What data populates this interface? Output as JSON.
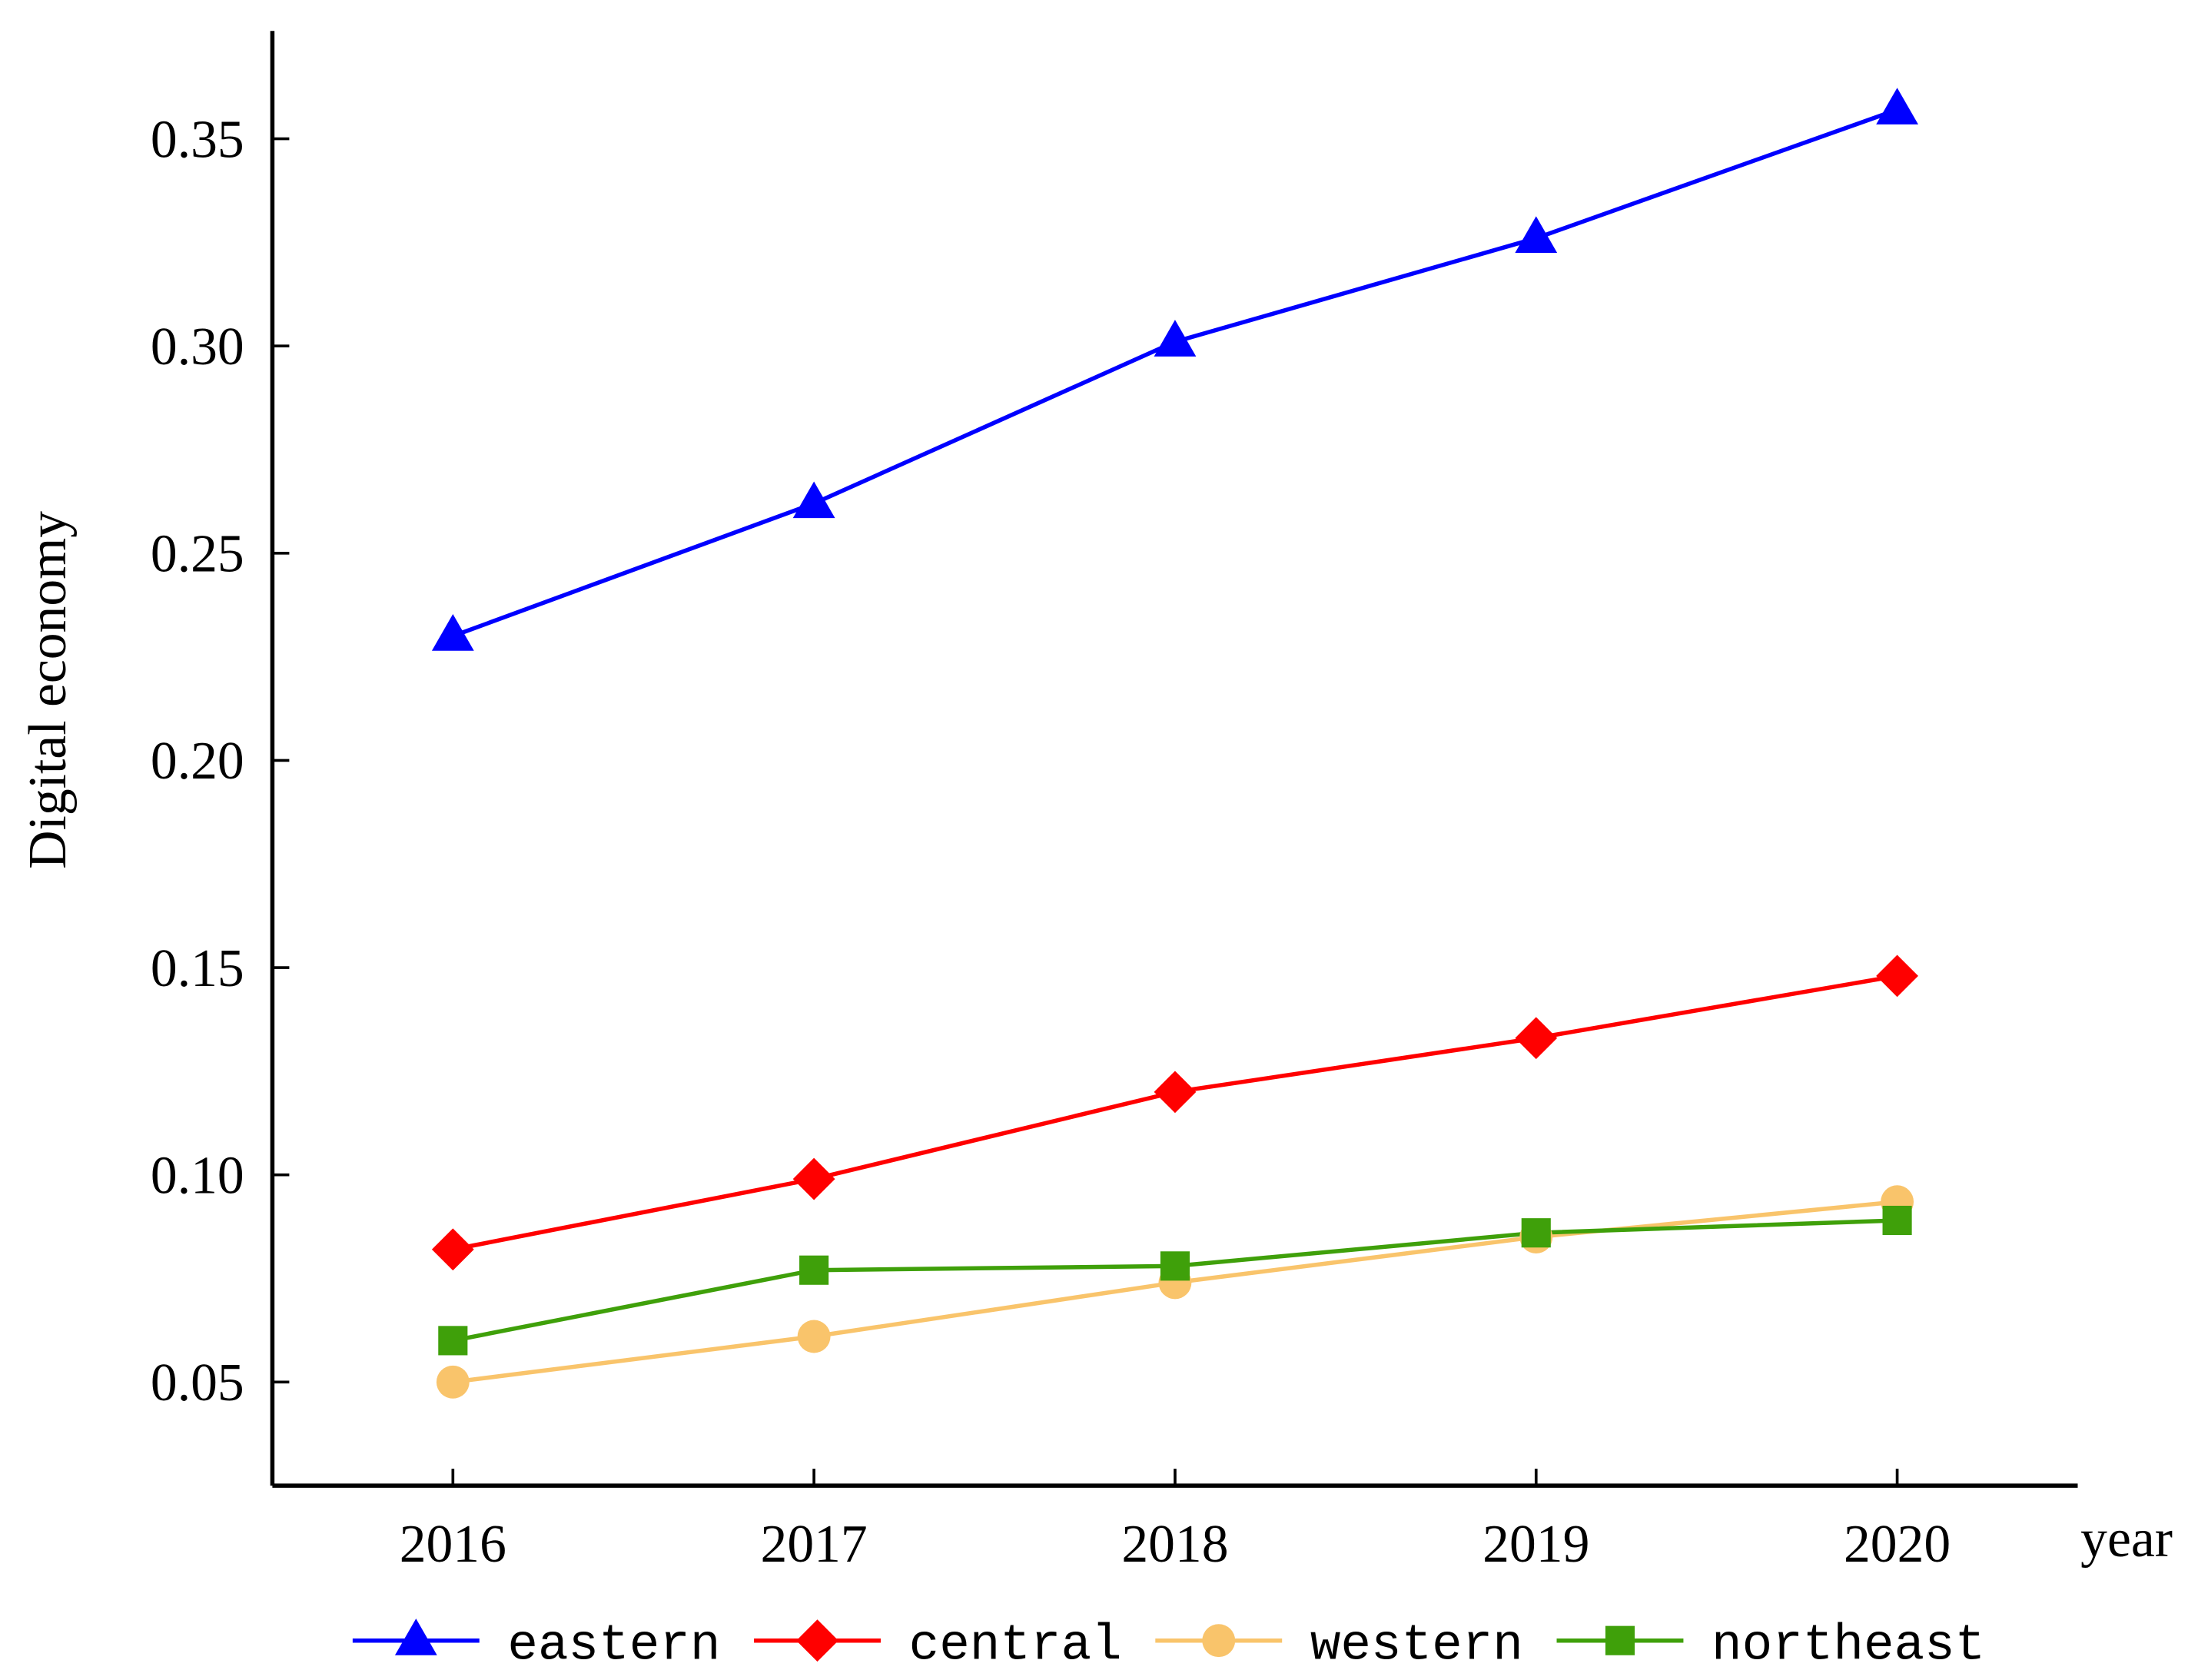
{
  "chart_data": {
    "type": "line",
    "y_label": "Digital economy",
    "x_label": "year",
    "x": [
      2016,
      2017,
      2018,
      2019,
      2020
    ],
    "xlim": [
      2015.5,
      2020.5
    ],
    "xticks": [
      2016,
      2017,
      2018,
      2019,
      2020
    ],
    "ylim": [
      0.025,
      0.376
    ],
    "yticks": [
      {
        "value": 0.05,
        "label": "0.05"
      },
      {
        "value": 0.1,
        "label": "0.10"
      },
      {
        "value": 0.15,
        "label": "0.15"
      },
      {
        "value": 0.2,
        "label": "0.20"
      },
      {
        "value": 0.25,
        "label": "0.25"
      },
      {
        "value": 0.3,
        "label": "0.30"
      },
      {
        "value": 0.35,
        "label": "0.35"
      }
    ],
    "grid": false,
    "legend": "bottom",
    "series": [
      {
        "name": "eastern",
        "color": "#0000ff",
        "marker": "triangle",
        "values": [
          0.23,
          0.262,
          0.301,
          0.326,
          0.357
        ]
      },
      {
        "name": "central",
        "color": "#ff0000",
        "marker": "diamond",
        "values": [
          0.082,
          0.099,
          0.12,
          0.133,
          0.148
        ]
      },
      {
        "name": "western",
        "color": "#f9c46b",
        "marker": "circle",
        "values": [
          0.05,
          0.061,
          0.074,
          0.085,
          0.0935
        ]
      },
      {
        "name": "northeast",
        "color": "#3fa00a",
        "marker": "square",
        "values": [
          0.06,
          0.077,
          0.078,
          0.086,
          0.089
        ]
      }
    ]
  }
}
